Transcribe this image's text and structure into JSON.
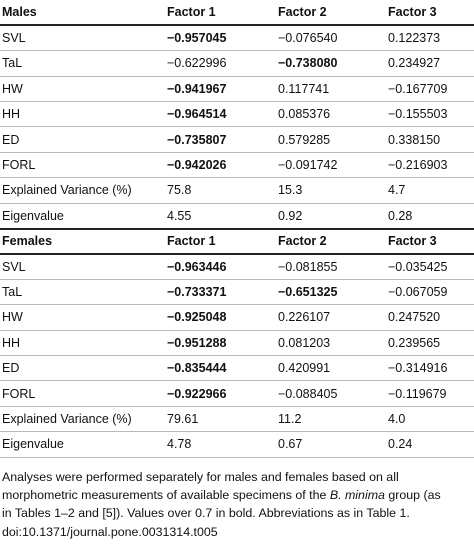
{
  "table": {
    "males": {
      "header": [
        "Males",
        "Factor 1",
        "Factor 2",
        "Factor 3"
      ],
      "rows": [
        {
          "label": "SVL",
          "values": [
            "−0.957045",
            "−0.076540",
            "0.122373"
          ],
          "bold": [
            true,
            false,
            false
          ]
        },
        {
          "label": "TaL",
          "values": [
            "−0.622996",
            "−0.738080",
            "0.234927"
          ],
          "bold": [
            false,
            true,
            false
          ]
        },
        {
          "label": "HW",
          "values": [
            "−0.941967",
            "0.117741",
            "−0.167709"
          ],
          "bold": [
            true,
            false,
            false
          ]
        },
        {
          "label": "HH",
          "values": [
            "−0.964514",
            "0.085376",
            "−0.155503"
          ],
          "bold": [
            true,
            false,
            false
          ]
        },
        {
          "label": "ED",
          "values": [
            "−0.735807",
            "0.579285",
            "0.338150"
          ],
          "bold": [
            true,
            false,
            false
          ]
        },
        {
          "label": "FORL",
          "values": [
            "−0.942026",
            "−0.091742",
            "−0.216903"
          ],
          "bold": [
            true,
            false,
            false
          ]
        },
        {
          "label": "Explained Variance (%)",
          "values": [
            "75.8",
            "15.3",
            "4.7"
          ],
          "bold": [
            false,
            false,
            false
          ]
        },
        {
          "label": "Eigenvalue",
          "values": [
            "4.55",
            "0.92",
            "0.28"
          ],
          "bold": [
            false,
            false,
            false
          ]
        }
      ]
    },
    "females": {
      "header": [
        "Females",
        "Factor 1",
        "Factor 2",
        "Factor 3"
      ],
      "rows": [
        {
          "label": "SVL",
          "values": [
            "−0.963446",
            "−0.081855",
            "−0.035425"
          ],
          "bold": [
            true,
            false,
            false
          ]
        },
        {
          "label": "TaL",
          "values": [
            "−0.733371",
            "−0.651325",
            "−0.067059"
          ],
          "bold": [
            true,
            true,
            false
          ]
        },
        {
          "label": "HW",
          "values": [
            "−0.925048",
            "0.226107",
            "0.247520"
          ],
          "bold": [
            true,
            false,
            false
          ]
        },
        {
          "label": "HH",
          "values": [
            "−0.951288",
            "0.081203",
            "0.239565"
          ],
          "bold": [
            true,
            false,
            false
          ]
        },
        {
          "label": "ED",
          "values": [
            "−0.835444",
            "0.420991",
            "−0.314916"
          ],
          "bold": [
            true,
            false,
            false
          ]
        },
        {
          "label": "FORL",
          "values": [
            "−0.922966",
            "−0.088405",
            "−0.119679"
          ],
          "bold": [
            true,
            false,
            false
          ]
        },
        {
          "label": "Explained Variance (%)",
          "values": [
            "79.61",
            "11.2",
            "4.0"
          ],
          "bold": [
            false,
            false,
            false
          ]
        },
        {
          "label": "Eigenvalue",
          "values": [
            "4.78",
            "0.67",
            "0.24"
          ],
          "bold": [
            false,
            false,
            false
          ]
        }
      ]
    }
  },
  "footnote": {
    "line1": "Analyses were performed separately for males and females based on all",
    "line2_a": "morphometric measurements of available specimens of the ",
    "line2_italic": "B. minima",
    "line2_b": " group (as",
    "line3": "in Tables 1–2 and [5]). Values over 0.7 in bold. Abbreviations as in Table 1.",
    "line4": "doi:10.1371/journal.pone.0031314.t005"
  }
}
